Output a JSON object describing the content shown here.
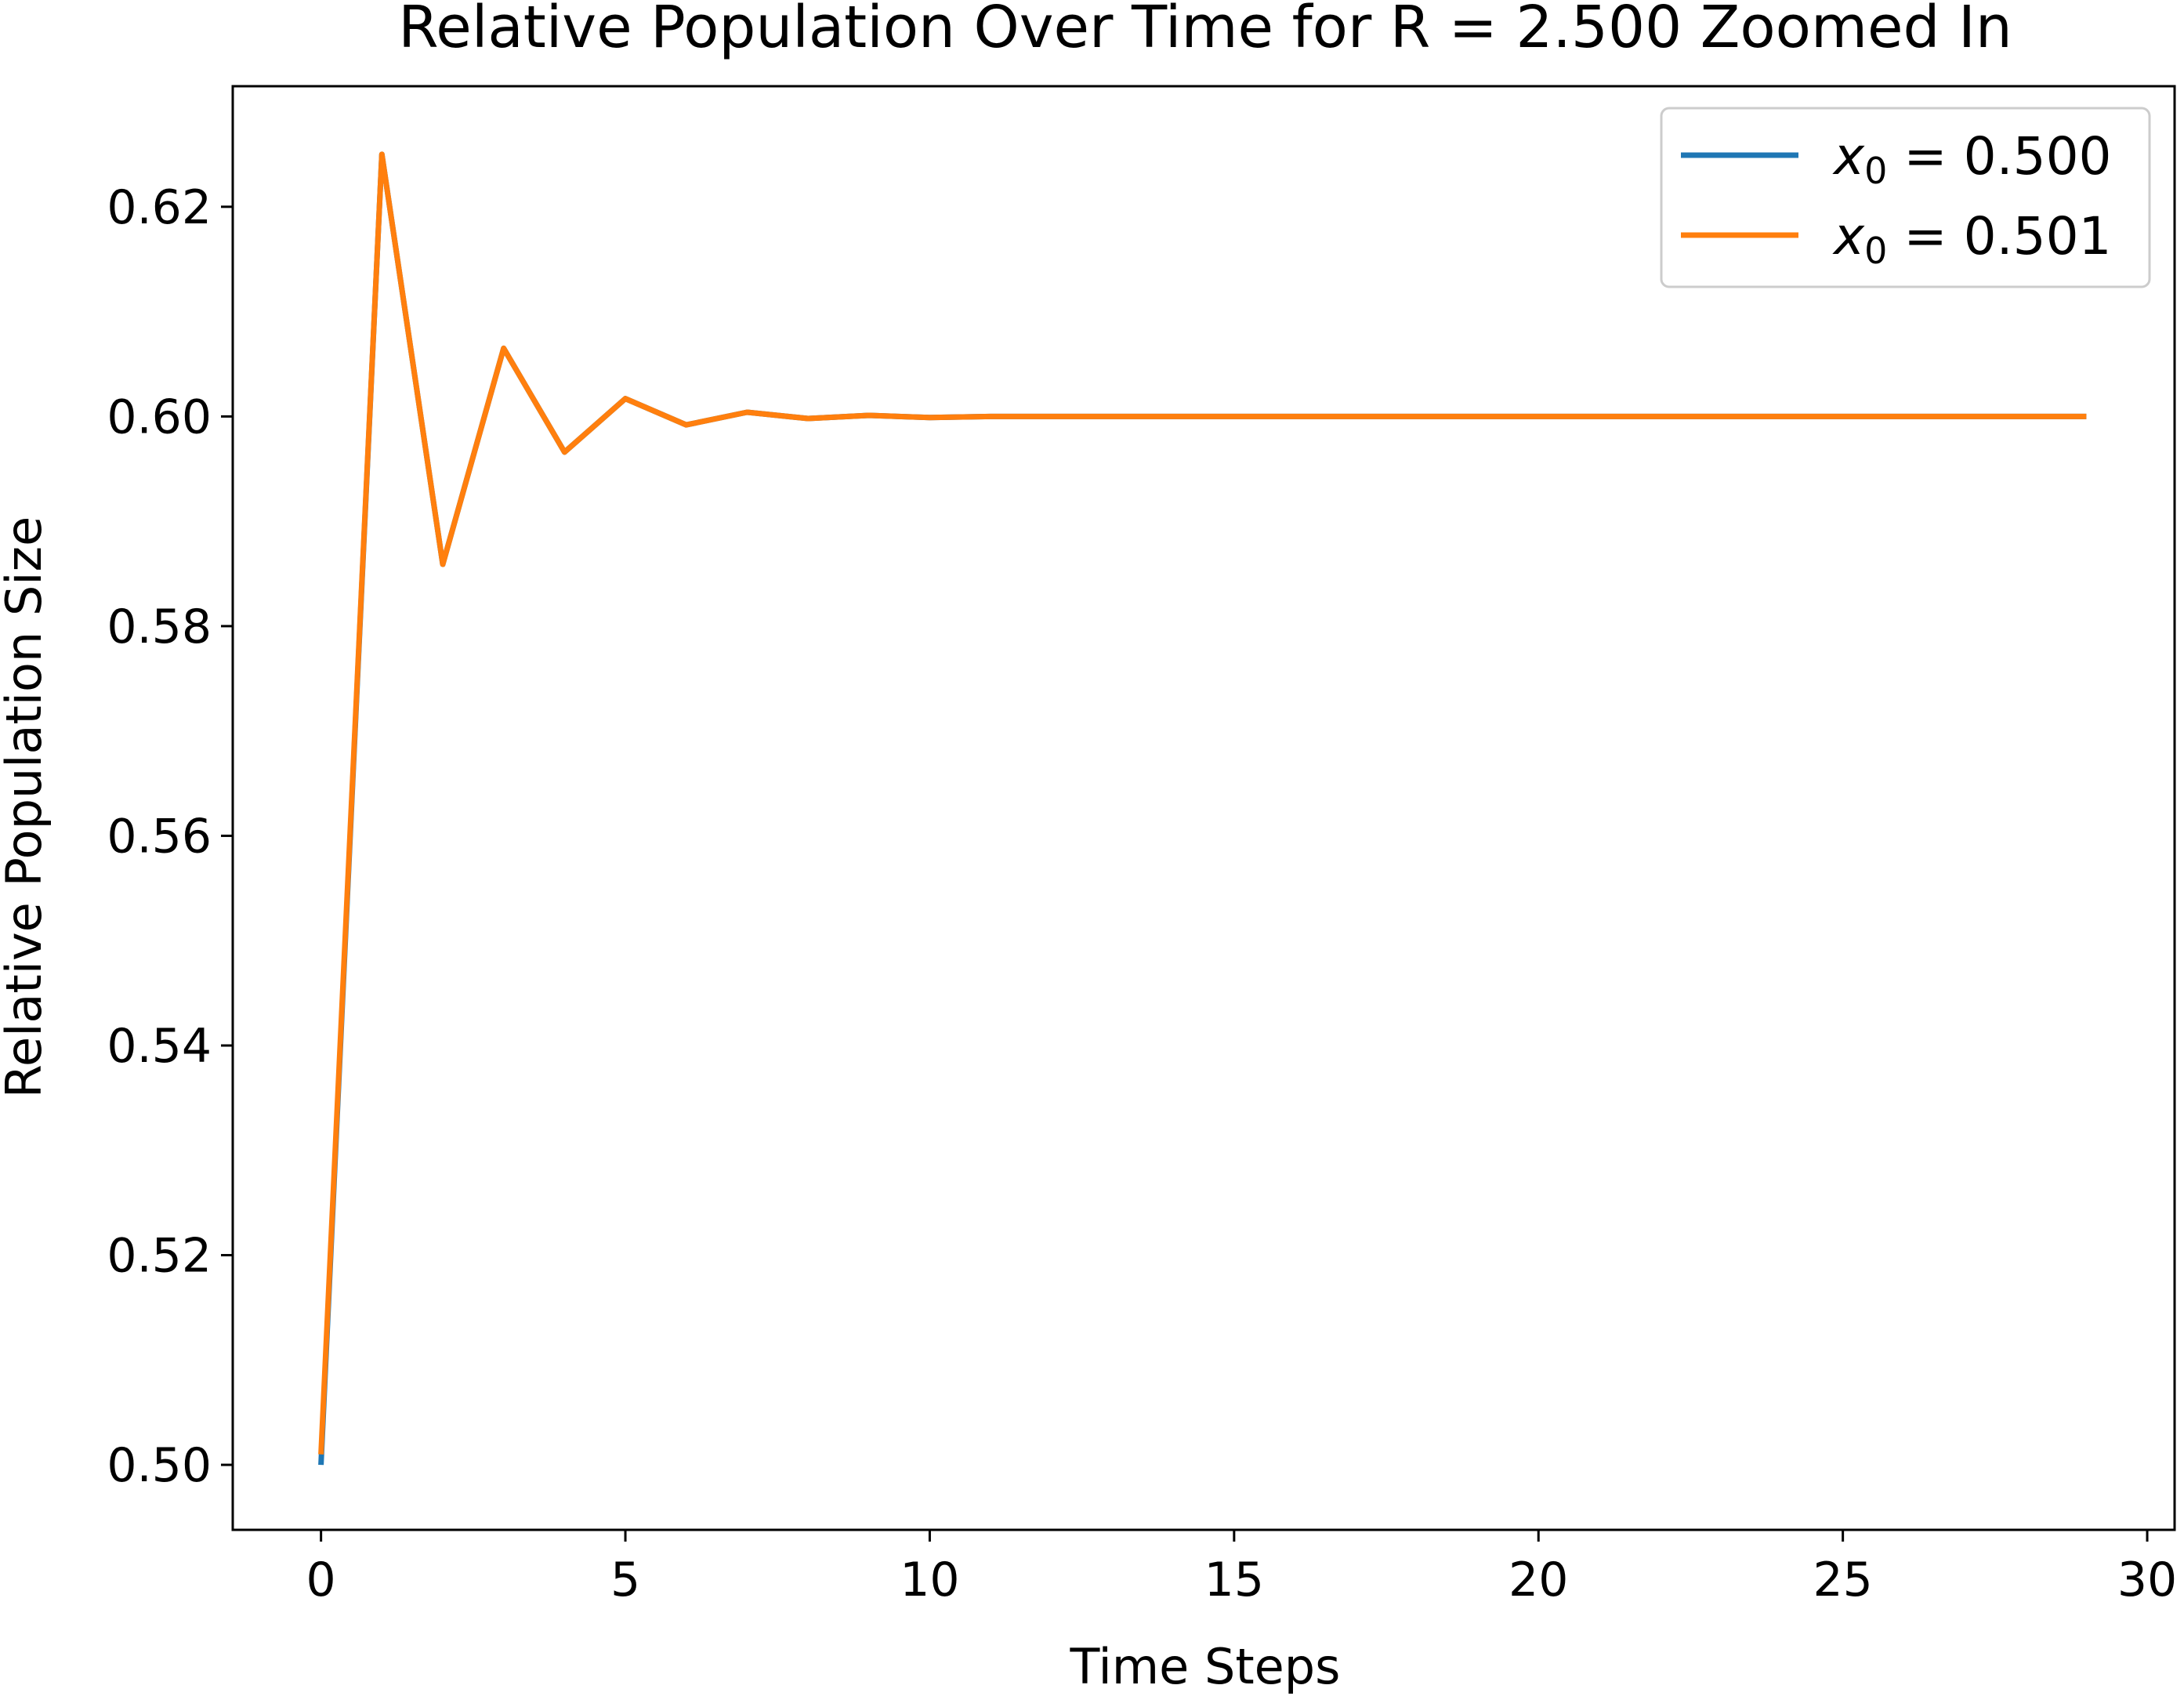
{
  "chart_data": {
    "type": "line",
    "title": "Relative Population Over Time for R = 2.500 Zoomed In",
    "xlabel": "Time Steps",
    "ylabel": "Relative Population Size",
    "xlim": [
      -1.45,
      30.45
    ],
    "ylim": [
      0.4938,
      0.6315
    ],
    "xticks": [
      0,
      5,
      10,
      15,
      20,
      25,
      30
    ],
    "xtick_labels": [
      "0",
      "5",
      "10",
      "15",
      "20",
      "25",
      "30"
    ],
    "yticks": [
      0.5,
      0.52,
      0.54,
      0.56,
      0.58,
      0.6,
      0.62
    ],
    "ytick_labels": [
      "0.50",
      "0.52",
      "0.54",
      "0.56",
      "0.58",
      "0.60",
      "0.62"
    ],
    "grid": false,
    "legend_position": "top-right",
    "x": [
      0,
      1,
      2,
      3,
      4,
      5,
      6,
      7,
      8,
      9,
      10,
      11,
      12,
      13,
      14,
      15,
      16,
      17,
      18,
      19,
      20,
      21,
      22,
      23,
      24,
      25,
      26,
      27,
      28,
      29
    ],
    "series": [
      {
        "name": "x0 = 0.500",
        "legend_base": "x",
        "legend_sub": "0",
        "legend_rest": " = 0.500",
        "color": "#1f77b4",
        "values": [
          0.5,
          0.625,
          0.5859,
          0.6065,
          0.5966,
          0.6017,
          0.5992,
          0.6004,
          0.5998,
          0.6001,
          0.5999,
          0.6,
          0.6,
          0.6,
          0.6,
          0.6,
          0.6,
          0.6,
          0.6,
          0.6,
          0.6,
          0.6,
          0.6,
          0.6,
          0.6,
          0.6,
          0.6,
          0.6,
          0.6,
          0.6
        ]
      },
      {
        "name": "x0 = 0.501",
        "legend_base": "x",
        "legend_sub": "0",
        "legend_rest": " = 0.501",
        "color": "#ff7f0e",
        "values": [
          0.501,
          0.625,
          0.5859,
          0.6065,
          0.5966,
          0.6017,
          0.5992,
          0.6004,
          0.5998,
          0.6001,
          0.5999,
          0.6,
          0.6,
          0.6,
          0.6,
          0.6,
          0.6,
          0.6,
          0.6,
          0.6,
          0.6,
          0.6,
          0.6,
          0.6,
          0.6,
          0.6,
          0.6,
          0.6,
          0.6,
          0.6
        ]
      }
    ]
  }
}
